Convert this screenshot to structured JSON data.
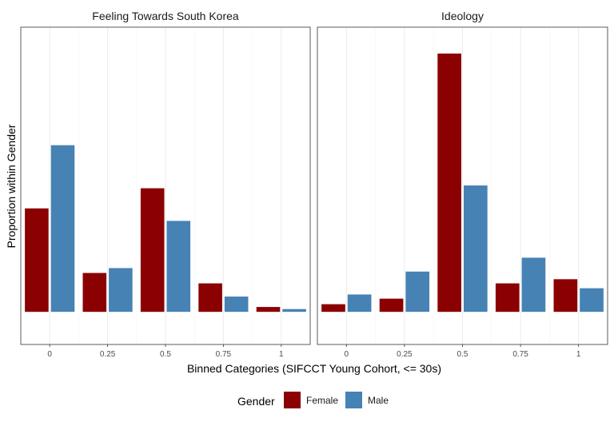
{
  "chart_data": {
    "type": "bar",
    "ylabel": "Proportion within Gender",
    "xlabel": "Binned Categories (SIFCCT Young Cohort, <= 30s)",
    "x_ticks": [
      "0",
      "0.25",
      "0.5",
      "0.75",
      "1"
    ],
    "ylim": [
      -0.047,
      0.41
    ],
    "grid": true,
    "legend": {
      "title": "Gender",
      "placement": "bottom",
      "entries": [
        {
          "name": "Female",
          "color": "#8B0000"
        },
        {
          "name": "Male",
          "color": "#4682B4"
        }
      ]
    },
    "panels": [
      {
        "title": "Feeling Towards South Korea",
        "categories": [
          0,
          0.25,
          0.5,
          0.75,
          1
        ],
        "series": [
          {
            "name": "Female",
            "values": [
              0.149,
              0.056,
              0.178,
              0.041,
              0.007
            ]
          },
          {
            "name": "Male",
            "values": [
              0.24,
              0.063,
              0.131,
              0.022,
              0.004
            ]
          }
        ]
      },
      {
        "title": "Ideology",
        "categories": [
          0,
          0.25,
          0.5,
          0.75,
          1
        ],
        "series": [
          {
            "name": "Female",
            "values": [
              0.011,
              0.019,
              0.372,
              0.041,
              0.047
            ]
          },
          {
            "name": "Male",
            "values": [
              0.025,
              0.058,
              0.182,
              0.078,
              0.034
            ]
          }
        ]
      }
    ]
  }
}
